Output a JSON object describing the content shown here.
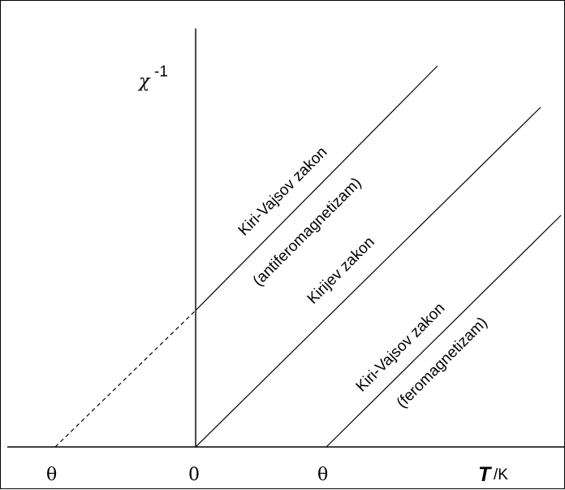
{
  "diagram": {
    "y_axis_label": {
      "symbol": "χ",
      "exponent": "-1"
    },
    "x_axis_label": {
      "symbol": "T",
      "unit": "/K"
    },
    "ticks": {
      "left_theta": "θ",
      "origin": "0",
      "right_theta": "θ"
    },
    "labels": {
      "afm_law": "Kiri-Vajsov zakon",
      "afm_kind": "(antiferomagnetizam)",
      "curie_law": "Kirijev zakon",
      "fm_law": "Kiri-Vajsov zakon",
      "fm_kind": "(feromagnetizam)"
    }
  }
}
